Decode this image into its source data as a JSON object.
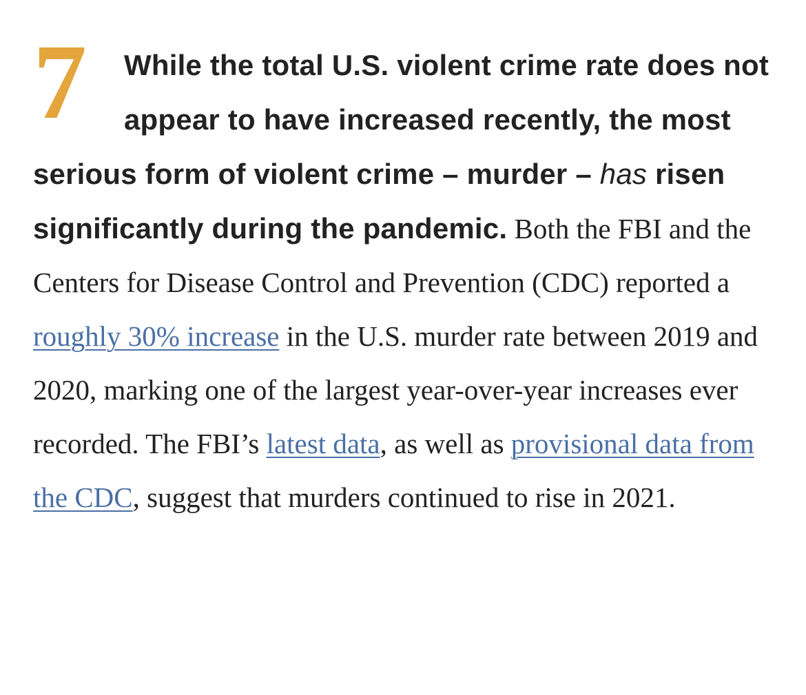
{
  "section": {
    "number": "7",
    "accent_color": "#e4a53d",
    "link_color": "#4a6fa5"
  },
  "lead": {
    "part1": "While the total U.S. violent crime rate does not appear to have increased recently, the most serious form of violent crime – murder – ",
    "emphasis": "has",
    "part2": " risen significantly during the pandemic."
  },
  "body": {
    "text1": " Both the FBI and the Centers for Disease Control and Prevention (CDC) reported a ",
    "link1": "roughly 30% increase",
    "text2": " in the U.S. murder rate between 2019 and 2020, marking one of the largest year-over-year increases ever recorded. The FBI’s ",
    "link2": "latest data",
    "text3": ", as well as ",
    "link3": "provisional data from the CDC",
    "text4": ", suggest that murders continued to rise in 2021."
  }
}
